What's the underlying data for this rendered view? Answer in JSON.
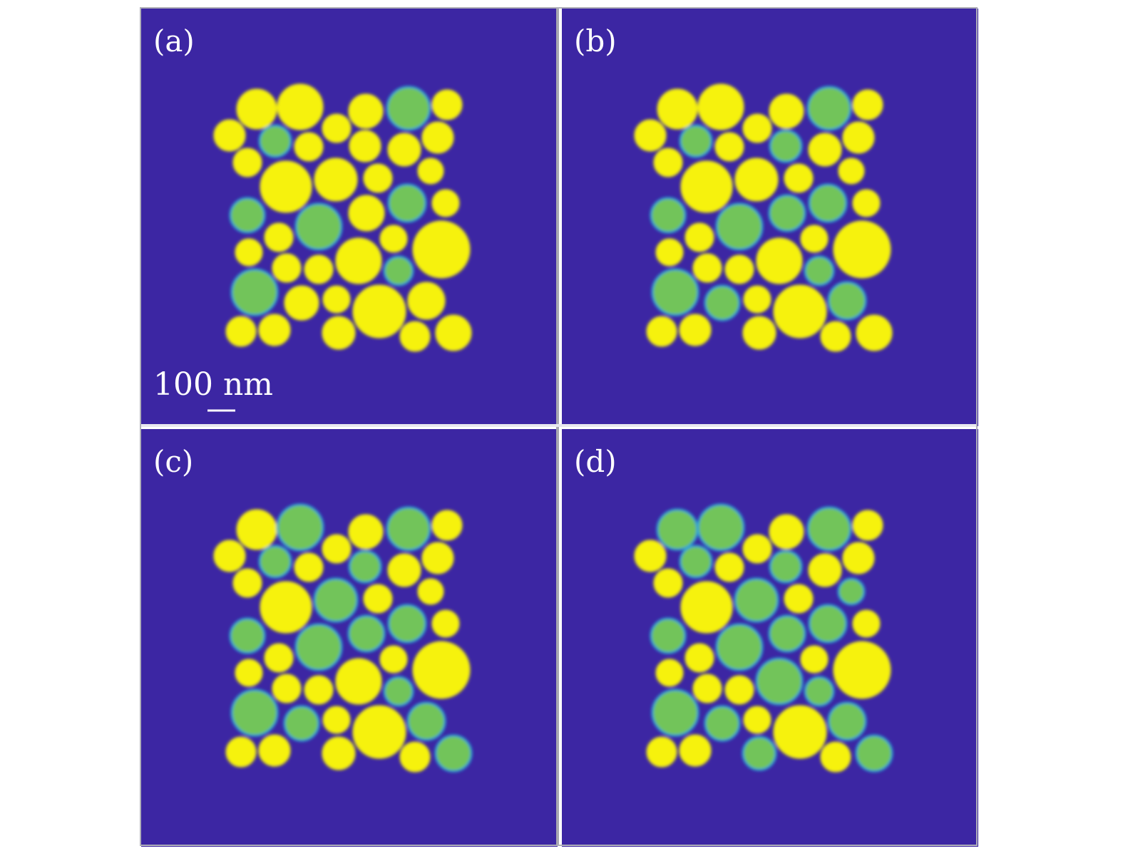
{
  "panels": [
    {
      "label": "(a)"
    },
    {
      "label": "(b)"
    },
    {
      "label": "(c)"
    },
    {
      "label": "(d)"
    }
  ],
  "scale_bar": {
    "label": "100 nm"
  }
}
